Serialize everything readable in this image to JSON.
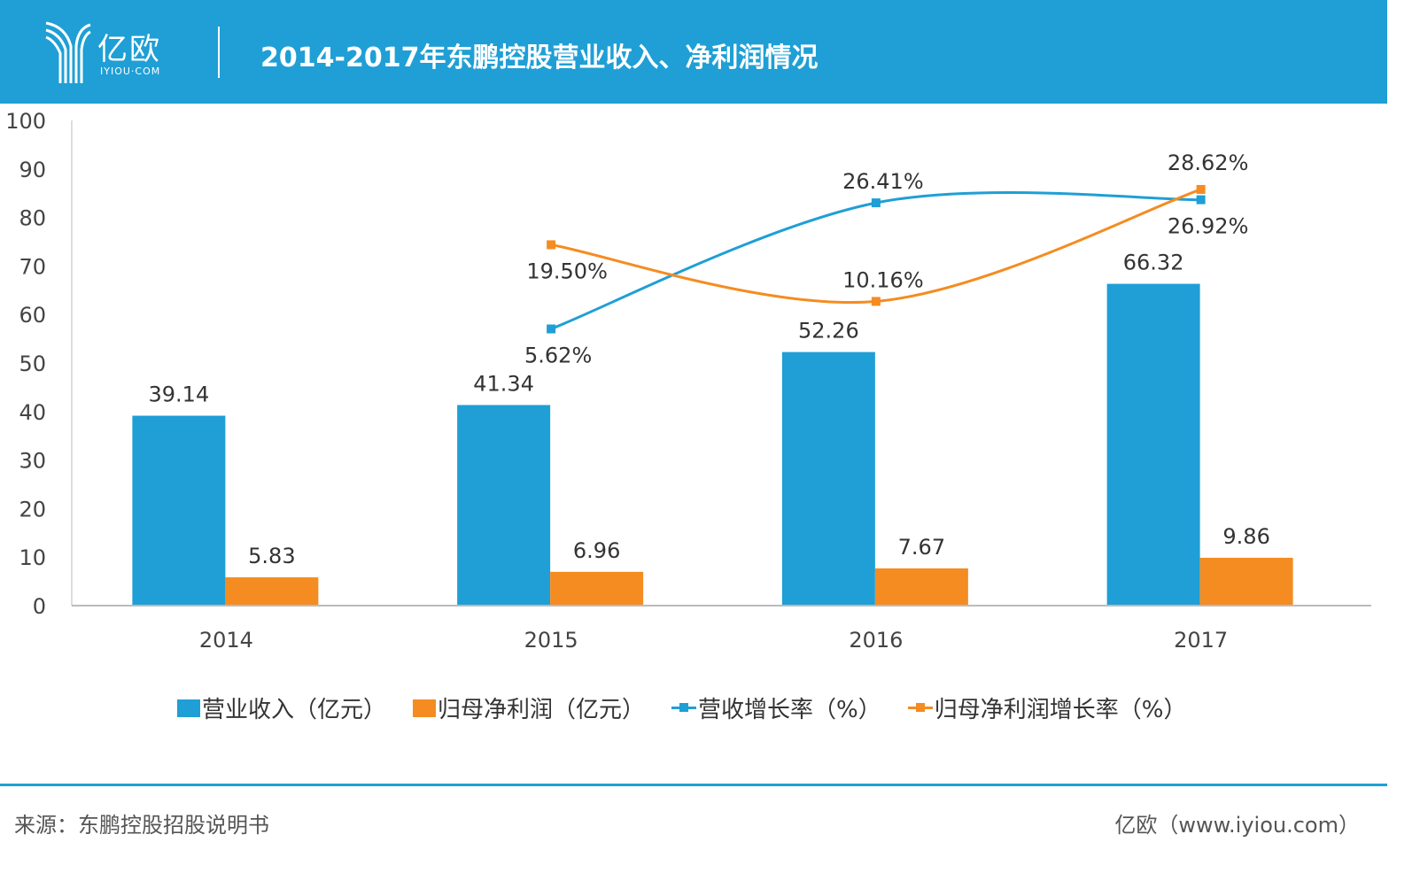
{
  "header": {
    "logo_text": "亿欧",
    "logo_sub": "IYIOU·COM",
    "title": "2014-2017年东鹏控股营业收入、净利润情况"
  },
  "colors": {
    "header": "#1f9fd5",
    "revenue": "#1f9fd5",
    "profit": "#f48c21"
  },
  "chart_data": {
    "type": "bar+line",
    "title": "2014-2017年东鹏控股营业收入、净利润情况",
    "categories": [
      "2014",
      "2015",
      "2016",
      "2017"
    ],
    "y_axis": {
      "ylim": [
        0,
        100
      ],
      "ticks": [
        "0",
        "10",
        "20",
        "30",
        "40",
        "50",
        "60",
        "70",
        "80",
        "90",
        "100"
      ]
    },
    "secondary_axis": {
      "visible": false,
      "ylim": [
        -40,
        40
      ]
    },
    "grid": false,
    "legend_position": "bottom",
    "series": [
      {
        "name": "营业收入（亿元）",
        "type": "bar",
        "color": "#1f9fd5",
        "values": [
          39.14,
          41.34,
          52.26,
          66.32
        ],
        "labels": [
          "39.14",
          "41.34",
          "52.26",
          "66.32"
        ]
      },
      {
        "name": "归母净利润（亿元）",
        "type": "bar",
        "color": "#f48c21",
        "values": [
          5.83,
          6.96,
          7.67,
          9.86
        ],
        "labels": [
          "5.83",
          "6.96",
          "7.67",
          "9.86"
        ]
      },
      {
        "name": "营收增长率（%）",
        "type": "line",
        "axis": "secondary",
        "color": "#1f9fd5",
        "values": [
          null,
          5.62,
          26.41,
          26.92
        ],
        "labels": [
          "",
          "5.62%",
          "26.41%",
          "26.92%"
        ]
      },
      {
        "name": "归母净利润增长率（%）",
        "type": "line",
        "axis": "secondary",
        "color": "#f48c21",
        "values": [
          null,
          19.5,
          10.16,
          28.62
        ],
        "labels": [
          "",
          "19.50%",
          "10.16%",
          "28.62%"
        ]
      }
    ]
  },
  "footer": {
    "source": "来源：东鹏控股招股说明书",
    "site": "亿欧（www.iyiou.com）"
  }
}
